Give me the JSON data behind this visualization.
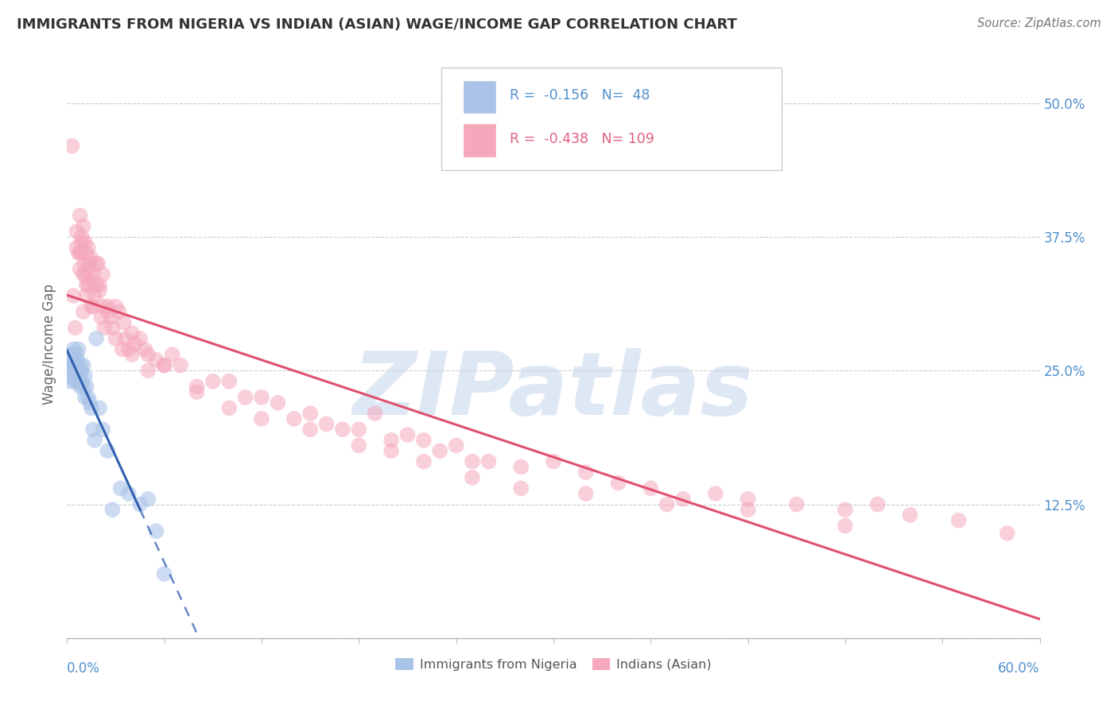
{
  "title": "IMMIGRANTS FROM NIGERIA VS INDIAN (ASIAN) WAGE/INCOME GAP CORRELATION CHART",
  "source": "Source: ZipAtlas.com",
  "ylabel": "Wage/Income Gap",
  "legend_label1": "Immigrants from Nigeria",
  "legend_label2": "Indians (Asian)",
  "R1": -0.156,
  "N1": 48,
  "R2": -0.438,
  "N2": 109,
  "color_blue": "#aac4e8",
  "color_pink": "#f5a8bc",
  "color_blue_dark": "#5090cc",
  "color_pink_dark": "#e06080",
  "color_blue_line": "#3060b0",
  "color_pink_line": "#e05070",
  "background_color": "#ffffff",
  "watermark": "ZIPatlas",
  "watermark_color": "#c8d8ee",
  "nigeria_x": [
    0.001,
    0.001,
    0.002,
    0.002,
    0.002,
    0.003,
    0.003,
    0.003,
    0.004,
    0.004,
    0.004,
    0.004,
    0.005,
    0.005,
    0.005,
    0.005,
    0.006,
    0.006,
    0.006,
    0.007,
    0.007,
    0.007,
    0.008,
    0.008,
    0.008,
    0.009,
    0.009,
    0.01,
    0.01,
    0.011,
    0.011,
    0.012,
    0.013,
    0.014,
    0.015,
    0.016,
    0.017,
    0.018,
    0.02,
    0.022,
    0.025,
    0.028,
    0.033,
    0.038,
    0.045,
    0.05,
    0.055,
    0.06
  ],
  "nigeria_y": [
    0.26,
    0.245,
    0.255,
    0.265,
    0.24,
    0.265,
    0.255,
    0.245,
    0.27,
    0.255,
    0.245,
    0.26,
    0.26,
    0.25,
    0.24,
    0.255,
    0.265,
    0.25,
    0.26,
    0.27,
    0.25,
    0.24,
    0.255,
    0.245,
    0.235,
    0.25,
    0.24,
    0.255,
    0.235,
    0.245,
    0.225,
    0.235,
    0.225,
    0.22,
    0.215,
    0.195,
    0.185,
    0.28,
    0.215,
    0.195,
    0.175,
    0.12,
    0.14,
    0.135,
    0.125,
    0.13,
    0.1,
    0.06
  ],
  "india_x": [
    0.003,
    0.004,
    0.005,
    0.006,
    0.006,
    0.007,
    0.008,
    0.008,
    0.009,
    0.009,
    0.01,
    0.01,
    0.011,
    0.011,
    0.012,
    0.012,
    0.013,
    0.013,
    0.014,
    0.015,
    0.015,
    0.016,
    0.017,
    0.018,
    0.019,
    0.02,
    0.021,
    0.022,
    0.023,
    0.025,
    0.027,
    0.028,
    0.03,
    0.032,
    0.034,
    0.036,
    0.038,
    0.04,
    0.042,
    0.045,
    0.048,
    0.05,
    0.055,
    0.06,
    0.065,
    0.07,
    0.08,
    0.09,
    0.1,
    0.11,
    0.12,
    0.13,
    0.14,
    0.15,
    0.16,
    0.17,
    0.18,
    0.19,
    0.2,
    0.21,
    0.22,
    0.23,
    0.24,
    0.25,
    0.26,
    0.28,
    0.3,
    0.32,
    0.34,
    0.36,
    0.38,
    0.4,
    0.42,
    0.45,
    0.48,
    0.5,
    0.52,
    0.55,
    0.58,
    0.008,
    0.009,
    0.01,
    0.011,
    0.012,
    0.013,
    0.014,
    0.016,
    0.018,
    0.02,
    0.022,
    0.025,
    0.03,
    0.035,
    0.04,
    0.05,
    0.06,
    0.08,
    0.1,
    0.12,
    0.15,
    0.18,
    0.2,
    0.22,
    0.25,
    0.28,
    0.32,
    0.37,
    0.42,
    0.48
  ],
  "india_y": [
    0.46,
    0.32,
    0.29,
    0.38,
    0.365,
    0.36,
    0.36,
    0.345,
    0.36,
    0.375,
    0.305,
    0.34,
    0.35,
    0.34,
    0.33,
    0.32,
    0.345,
    0.33,
    0.335,
    0.31,
    0.355,
    0.31,
    0.32,
    0.33,
    0.35,
    0.325,
    0.3,
    0.31,
    0.29,
    0.31,
    0.3,
    0.29,
    0.28,
    0.305,
    0.27,
    0.28,
    0.27,
    0.265,
    0.275,
    0.28,
    0.27,
    0.25,
    0.26,
    0.255,
    0.265,
    0.255,
    0.235,
    0.24,
    0.24,
    0.225,
    0.225,
    0.22,
    0.205,
    0.21,
    0.2,
    0.195,
    0.195,
    0.21,
    0.185,
    0.19,
    0.185,
    0.175,
    0.18,
    0.165,
    0.165,
    0.16,
    0.165,
    0.155,
    0.145,
    0.14,
    0.13,
    0.135,
    0.13,
    0.125,
    0.12,
    0.125,
    0.115,
    0.11,
    0.098,
    0.395,
    0.37,
    0.385,
    0.37,
    0.36,
    0.365,
    0.35,
    0.34,
    0.35,
    0.33,
    0.34,
    0.305,
    0.31,
    0.295,
    0.285,
    0.265,
    0.255,
    0.23,
    0.215,
    0.205,
    0.195,
    0.18,
    0.175,
    0.165,
    0.15,
    0.14,
    0.135,
    0.125,
    0.12,
    0.105
  ],
  "nig_line_x_start": 0.0,
  "nig_line_x_solid_end": 0.045,
  "nig_line_x_dash_end": 0.6,
  "ind_line_x_start": 0.0,
  "ind_line_x_end": 0.6,
  "xmin": 0.0,
  "xmax": 0.6,
  "ymin": 0.0,
  "ymax": 0.55
}
